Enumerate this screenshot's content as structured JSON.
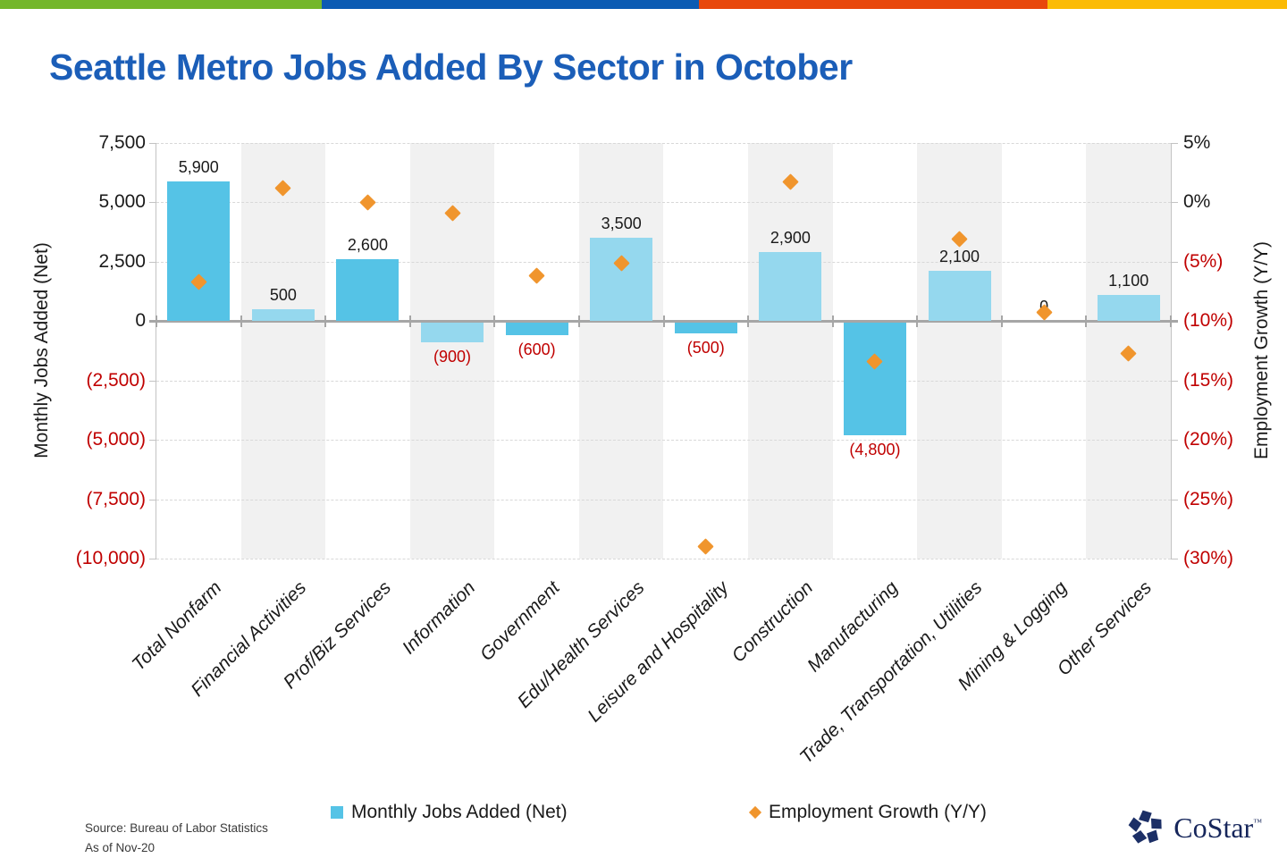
{
  "title": "Seattle Metro Jobs Added By Sector in October",
  "title_color": "#1B5EB8",
  "brand_bar": {
    "colors": [
      "#74B72B",
      "#0C5BB3",
      "#E8470B",
      "#FBBB05"
    ]
  },
  "chart_data": {
    "type": "bar",
    "subtype": "combo bar + diamond scatter, dual axis",
    "categories": [
      "Total Nonfarm",
      "Financial Activities",
      "Prof/Biz Services",
      "Information",
      "Government",
      "Edu/Health Services",
      "Leisure and Hospitality",
      "Construction",
      "Manufacturing",
      "Trade, Transportation, Utilities",
      "Mining & Logging",
      "Other Services"
    ],
    "series": [
      {
        "name": "Monthly Jobs Added (Net)",
        "type": "bar",
        "axis": "left",
        "values": [
          5900,
          500,
          2600,
          -900,
          -600,
          3500,
          -500,
          2900,
          -4800,
          2100,
          0,
          1100
        ],
        "labels": [
          "5,900",
          "500",
          "2,600",
          "(900)",
          "(600)",
          "3,500",
          "(500)",
          "2,900",
          "(4,800)",
          "2,100",
          "0",
          "1,100"
        ]
      },
      {
        "name": "Employment Growth (Y/Y)",
        "type": "scatter",
        "marker": "diamond",
        "axis": "right",
        "values_pct": [
          -6.7,
          1.2,
          0.0,
          -0.9,
          -6.2,
          -5.1,
          -29.0,
          1.7,
          -13.4,
          -3.1,
          -9.3,
          -12.7
        ]
      }
    ],
    "left_axis": {
      "title": "Monthly Jobs Added (Net)",
      "range": [
        -10000,
        7500
      ],
      "ticks": [
        "7,500",
        "5,000",
        "2,500",
        "0",
        "(2,500)",
        "(5,000)",
        "(7,500)",
        "(10,000)"
      ],
      "tick_values": [
        7500,
        5000,
        2500,
        0,
        -2500,
        -5000,
        -7500,
        -10000
      ]
    },
    "right_axis": {
      "title": "Employment Growth (Y/Y)",
      "range": [
        -30,
        5
      ],
      "ticks": [
        "5%",
        "0%",
        "(5%)",
        "(10%)",
        "(15%)",
        "(20%)",
        "(25%)",
        "(30%)"
      ],
      "tick_values": [
        5,
        0,
        -5,
        -10,
        -15,
        -20,
        -25,
        -30
      ]
    },
    "legend": [
      {
        "marker": "square",
        "label": "Monthly Jobs Added (Net)"
      },
      {
        "marker": "diamond",
        "label": "Employment Growth (Y/Y)"
      }
    ],
    "grid": "dashed horizontal, alternating vertical shading bands",
    "colors": {
      "bar": "#55C3E6",
      "bar_alt": "#95D8EE",
      "diamond": "#F0952D",
      "negative_label": "#C00000",
      "gridline": "#D8D8D8",
      "band": "#F1F1F1",
      "axis_line": "#C3C3C3",
      "zero_line": "#A6A6A6"
    }
  },
  "footer": {
    "source_line1": "Source: Bureau of Labor Statistics",
    "source_line2": "As of Nov-20",
    "logo_text": "CoStar",
    "logo_tm": "TM"
  }
}
